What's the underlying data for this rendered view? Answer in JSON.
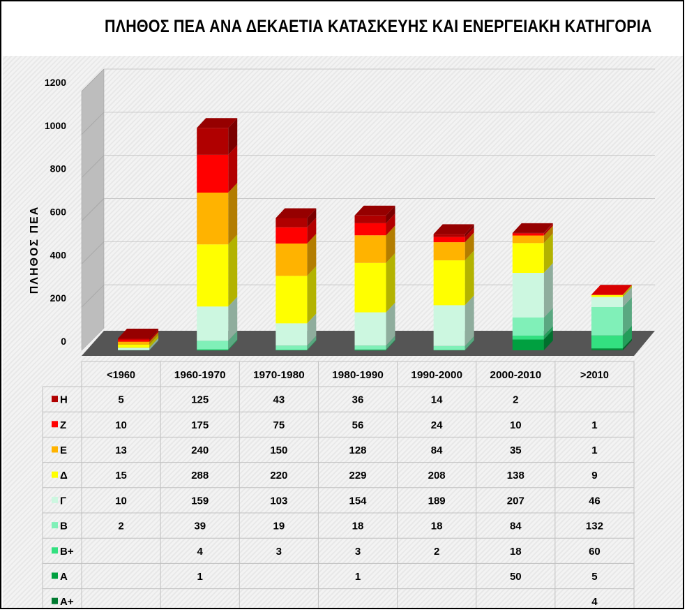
{
  "title": "ΠΛΗΘΟΣ ΠΕΑ ΑΝΑ ΔΕΚΑΕΤΙΑ ΚΑΤΑΣΚΕΥΗΣ ΚΑΙ ΕΝΕΡΓΕΙΑΚΗ ΚΑΤΗΓΟΡΙΑ",
  "chart_data": {
    "type": "bar",
    "stacked": true,
    "three_d": true,
    "title": "ΠΛΗΘΟΣ ΠΕΑ ΑΝΑ ΔΕΚΑΕΤΙΑ ΚΑΤΑΣΚΕΥΗΣ ΚΑΙ ΕΝΕΡΓΕΙΑΚΗ ΚΑΤΗΓΟΡΙΑ",
    "ylabel": "ΠΛΗΘΟΣ ΠΕΑ",
    "xlabel": "",
    "ylim": [
      0,
      1200
    ],
    "yticks": [
      "0",
      "200",
      "400",
      "600",
      "800",
      "1000",
      "1200"
    ],
    "grid": true,
    "legend": "data-table",
    "categories": [
      "<1960",
      "1960-1970",
      "1970-1980",
      "1980-1990",
      "1990-2000",
      "2000-2010",
      ">2010"
    ],
    "series": [
      {
        "name": "Η",
        "color": "#b00000",
        "values": [
          5,
          125,
          43,
          36,
          14,
          2,
          null
        ]
      },
      {
        "name": "Ζ",
        "color": "#ff0000",
        "values": [
          10,
          175,
          75,
          56,
          24,
          10,
          1
        ]
      },
      {
        "name": "Ε",
        "color": "#ffb300",
        "values": [
          13,
          240,
          150,
          128,
          84,
          35,
          1
        ]
      },
      {
        "name": "Δ",
        "color": "#ffff00",
        "values": [
          15,
          288,
          220,
          229,
          208,
          138,
          9
        ]
      },
      {
        "name": "Γ",
        "color": "#ccf7e0",
        "values": [
          10,
          159,
          103,
          154,
          189,
          207,
          46
        ]
      },
      {
        "name": "Β",
        "color": "#80f0b8",
        "values": [
          2,
          39,
          19,
          18,
          18,
          84,
          132
        ]
      },
      {
        "name": "Β+",
        "color": "#33e080",
        "values": [
          null,
          4,
          3,
          3,
          2,
          18,
          60
        ]
      },
      {
        "name": "Α",
        "color": "#00a040",
        "values": [
          null,
          1,
          null,
          1,
          null,
          50,
          5
        ]
      },
      {
        "name": "Α+",
        "color": "#007a30",
        "values": [
          null,
          null,
          null,
          null,
          null,
          null,
          4
        ]
      }
    ]
  },
  "colors": {
    "floor": "#555555",
    "wall_side": "#bdbdbd",
    "gridline": "#c8c8c8"
  }
}
